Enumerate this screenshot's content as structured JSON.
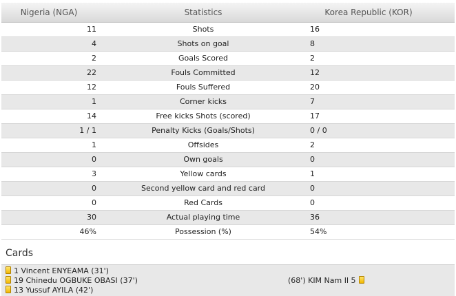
{
  "header": {
    "home": "Nigeria (NGA)",
    "stat": "Statistics",
    "away": "Korea Republic (KOR)"
  },
  "rows": [
    {
      "home": "11",
      "stat": "Shots",
      "away": "16"
    },
    {
      "home": "4",
      "stat": "Shots on goal",
      "away": "8"
    },
    {
      "home": "2",
      "stat": "Goals Scored",
      "away": "2"
    },
    {
      "home": "22",
      "stat": "Fouls Committed",
      "away": "12"
    },
    {
      "home": "12",
      "stat": "Fouls Suffered",
      "away": "20"
    },
    {
      "home": "1",
      "stat": "Corner kicks",
      "away": "7"
    },
    {
      "home": "14",
      "stat": "Free kicks Shots (scored)",
      "away": "17"
    },
    {
      "home": "1 / 1",
      "stat": "Penalty Kicks (Goals/Shots)",
      "away": "0 / 0"
    },
    {
      "home": "1",
      "stat": "Offsides",
      "away": "2"
    },
    {
      "home": "0",
      "stat": "Own goals",
      "away": "0"
    },
    {
      "home": "3",
      "stat": "Yellow cards",
      "away": "1"
    },
    {
      "home": "0",
      "stat": "Second yellow card and red card",
      "away": "0"
    },
    {
      "home": "0",
      "stat": "Red Cards",
      "away": "0"
    },
    {
      "home": "30",
      "stat": "Actual playing time",
      "away": "36"
    },
    {
      "home": "46%",
      "stat": "Possession (%)",
      "away": "54%"
    }
  ],
  "cards": {
    "title": "Cards",
    "home": [
      "1 Vincent ENYEAMA (31')",
      "19 Chinedu OGBUKE OBASI (37')",
      "13 Yussuf AYILA (42')"
    ],
    "away": [
      "(68') KIM Nam Il 5"
    ],
    "card_color": "#f2b800",
    "card_icon": "yellow-card-icon"
  }
}
